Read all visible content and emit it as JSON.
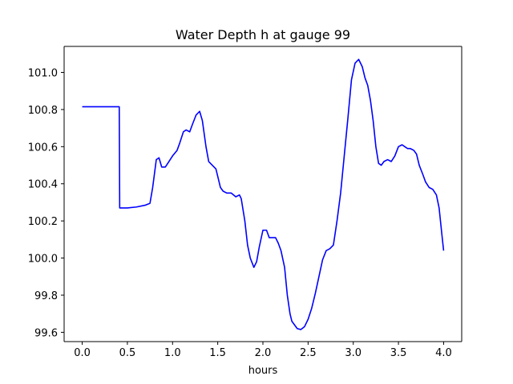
{
  "chart_data": {
    "type": "line",
    "title": "Water Depth h at gauge 99",
    "xlabel": "hours",
    "ylabel": "",
    "xlim": [
      -0.2,
      4.2
    ],
    "ylim": [
      99.55,
      101.14
    ],
    "xticks": [
      0.0,
      0.5,
      1.0,
      1.5,
      2.0,
      2.5,
      3.0,
      3.5,
      4.0
    ],
    "xtick_labels": [
      "0.0",
      "0.5",
      "1.0",
      "1.5",
      "2.0",
      "2.5",
      "3.0",
      "3.5",
      "4.0"
    ],
    "yticks": [
      99.6,
      99.8,
      100.0,
      100.2,
      100.4,
      100.6,
      100.8,
      101.0
    ],
    "ytick_labels": [
      "99.6",
      "99.8",
      "100.0",
      "100.2",
      "100.4",
      "100.6",
      "100.8",
      "101.0"
    ],
    "grid": false,
    "legend": "none",
    "series": [
      {
        "color": "#0000ff",
        "x": [
          0.0,
          0.1,
          0.2,
          0.3,
          0.41,
          0.415,
          0.5,
          0.6,
          0.7,
          0.75,
          0.78,
          0.82,
          0.85,
          0.88,
          0.92,
          0.96,
          1.0,
          1.05,
          1.08,
          1.12,
          1.15,
          1.19,
          1.22,
          1.26,
          1.3,
          1.33,
          1.37,
          1.4,
          1.44,
          1.48,
          1.5,
          1.53,
          1.56,
          1.6,
          1.65,
          1.7,
          1.74,
          1.76,
          1.8,
          1.83,
          1.86,
          1.9,
          1.93,
          1.96,
          2.0,
          2.04,
          2.07,
          2.1,
          2.14,
          2.17,
          2.2,
          2.24,
          2.27,
          2.3,
          2.32,
          2.35,
          2.38,
          2.42,
          2.46,
          2.5,
          2.54,
          2.58,
          2.62,
          2.66,
          2.7,
          2.74,
          2.78,
          2.82,
          2.86,
          2.9,
          2.94,
          2.98,
          3.02,
          3.06,
          3.1,
          3.13,
          3.16,
          3.19,
          3.22,
          3.25,
          3.28,
          3.31,
          3.34,
          3.38,
          3.42,
          3.46,
          3.5,
          3.54,
          3.57,
          3.6,
          3.63,
          3.67,
          3.7,
          3.73,
          3.77,
          3.8,
          3.84,
          3.88,
          3.92,
          3.95,
          3.98,
          4.0
        ],
        "y": [
          100.815,
          100.815,
          100.815,
          100.815,
          100.815,
          100.27,
          100.27,
          100.275,
          100.285,
          100.295,
          100.38,
          100.53,
          100.54,
          100.49,
          100.49,
          100.52,
          100.55,
          100.58,
          100.62,
          100.68,
          100.69,
          100.68,
          100.72,
          100.77,
          100.79,
          100.74,
          100.6,
          100.52,
          100.5,
          100.48,
          100.44,
          100.38,
          100.36,
          100.35,
          100.35,
          100.33,
          100.34,
          100.32,
          100.2,
          100.07,
          100.0,
          99.95,
          99.98,
          100.06,
          100.15,
          100.15,
          100.11,
          100.11,
          100.11,
          100.08,
          100.04,
          99.95,
          99.8,
          99.7,
          99.66,
          99.64,
          99.62,
          99.615,
          99.63,
          99.67,
          99.73,
          99.81,
          99.9,
          99.99,
          100.04,
          100.05,
          100.07,
          100.2,
          100.35,
          100.55,
          100.75,
          100.96,
          101.05,
          101.07,
          101.03,
          100.97,
          100.93,
          100.85,
          100.74,
          100.6,
          100.51,
          100.5,
          100.52,
          100.53,
          100.52,
          100.55,
          100.6,
          100.61,
          100.6,
          100.59,
          100.59,
          100.58,
          100.56,
          100.5,
          100.45,
          100.41,
          100.38,
          100.37,
          100.34,
          100.27,
          100.13,
          100.04
        ]
      }
    ]
  }
}
